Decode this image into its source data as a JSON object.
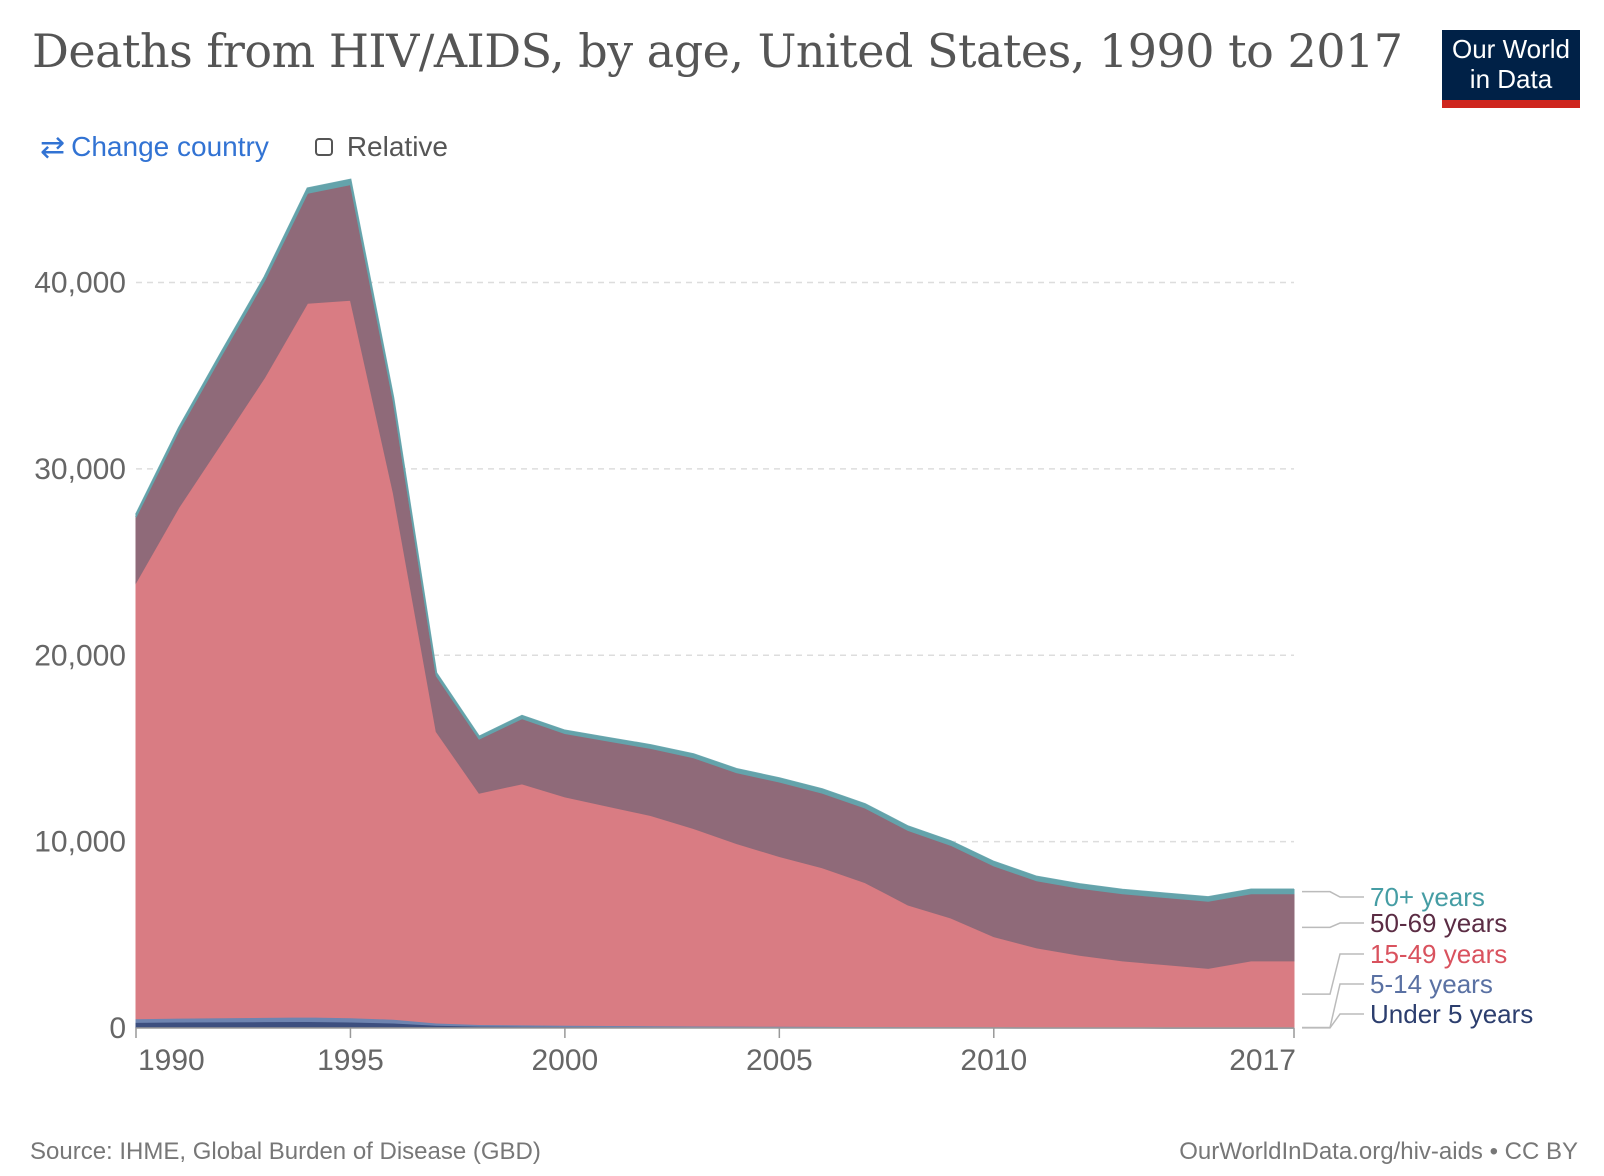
{
  "header": {
    "title": "Deaths from HIV/AIDS, by age, United States, 1990 to 2017",
    "logo_line1": "Our World",
    "logo_line2": "in Data"
  },
  "controls": {
    "change_country_label": "Change country",
    "relative_label": "Relative",
    "relative_checked": false
  },
  "footer": {
    "source": "Source: IHME, Global Burden of Disease (GBD)",
    "license": "OurWorldInData.org/hiv-aids • CC BY"
  },
  "colors": {
    "under5": "#3d4f7f",
    "age5_14": "#6e84b0",
    "age15_49": "#d97c83",
    "age50_69": "#8f6a79",
    "age70plus": "#64a3ab",
    "under5_label": "#2c3e6e",
    "age5_14_label": "#5a71a3",
    "age15_49_label": "#d9525e",
    "age50_69_label": "#5b2c44",
    "age70plus_label": "#459da4",
    "grid": "#dddddd",
    "axis_text": "#666666"
  },
  "chart_data": {
    "type": "area",
    "stacked": true,
    "title": "Deaths from HIV/AIDS, by age, United States, 1990 to 2017",
    "xlabel": "",
    "ylabel": "",
    "ylim": [
      0,
      45500
    ],
    "yticks": [
      0,
      10000,
      20000,
      30000,
      40000
    ],
    "ytick_labels": [
      "0",
      "10,000",
      "20,000",
      "30,000",
      "40,000"
    ],
    "xticks": [
      1990,
      1995,
      2000,
      2005,
      2010,
      2017
    ],
    "xtick_labels": [
      "1990",
      "1995",
      "2000",
      "2005",
      "2010",
      "2017"
    ],
    "grid": "horizontal dashed",
    "legend": "right, labels at series ends",
    "x": [
      1990,
      1991,
      1992,
      1993,
      1994,
      1995,
      1996,
      1997,
      1998,
      1999,
      2000,
      2001,
      2002,
      2003,
      2004,
      2005,
      2006,
      2007,
      2008,
      2009,
      2010,
      2011,
      2012,
      2013,
      2014,
      2015,
      2016,
      2017
    ],
    "series": [
      {
        "name": "Under 5 years",
        "values": [
          300,
          320,
          330,
          340,
          350,
          320,
          270,
          150,
          100,
          90,
          80,
          70,
          60,
          55,
          50,
          45,
          40,
          35,
          30,
          28,
          25,
          22,
          20,
          18,
          16,
          15,
          14,
          13
        ]
      },
      {
        "name": "5-14 years",
        "values": [
          200,
          210,
          220,
          230,
          240,
          230,
          200,
          120,
          90,
          80,
          70,
          65,
          60,
          55,
          50,
          48,
          45,
          42,
          40,
          38,
          35,
          33,
          30,
          28,
          26,
          25,
          23,
          22
        ]
      },
      {
        "name": "15-49 years",
        "values": [
          23400,
          27400,
          30850,
          34330,
          38300,
          38500,
          28230,
          15630,
          12410,
          12930,
          12250,
          11765,
          11280,
          10590,
          9800,
          9107,
          8515,
          7723,
          6530,
          5834,
          4840,
          4245,
          3850,
          3554,
          3358,
          3160,
          3563,
          3565
        ]
      },
      {
        "name": "50-69 years",
        "values": [
          3500,
          4100,
          4700,
          5200,
          5900,
          6200,
          4900,
          3000,
          2900,
          3500,
          3400,
          3500,
          3600,
          3800,
          3800,
          4000,
          4000,
          4000,
          4000,
          3900,
          3800,
          3600,
          3600,
          3600,
          3600,
          3600,
          3600,
          3600
        ]
      },
      {
        "name": "70+ years",
        "values": [
          150,
          170,
          190,
          210,
          260,
          270,
          210,
          150,
          130,
          150,
          160,
          170,
          180,
          190,
          200,
          200,
          210,
          210,
          220,
          220,
          220,
          220,
          220,
          220,
          220,
          220,
          230,
          230
        ]
      }
    ]
  }
}
